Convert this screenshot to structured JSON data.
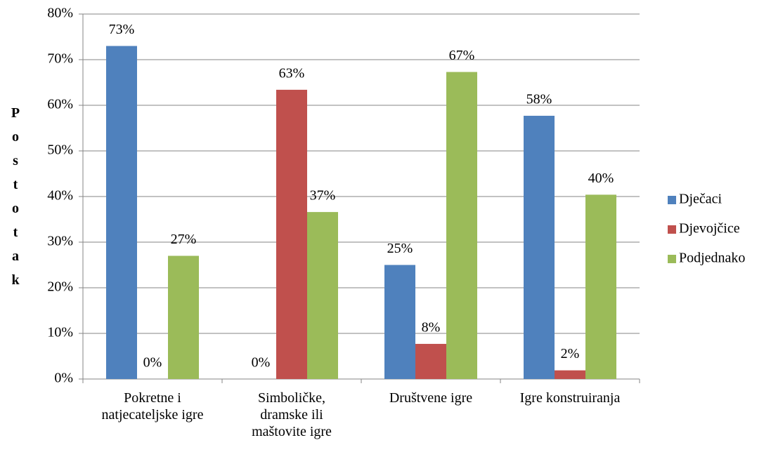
{
  "chart_data": {
    "type": "bar",
    "y_axis_label": "Postotak",
    "categories": [
      "Pokretne i natjecateljske igre",
      "Simboličke, dramske ili maštovite igre",
      "Društvene igre",
      "Igre konstruiranja"
    ],
    "series": [
      {
        "name": "Dječaci",
        "color": "#4f81bd",
        "values": [
          73,
          0,
          25,
          57.7
        ],
        "value_labels": [
          "73%",
          "0%",
          "25%",
          "58%"
        ]
      },
      {
        "name": "Djevojčice",
        "color": "#c0504d",
        "values": [
          0,
          63.4,
          7.7,
          1.9
        ],
        "value_labels": [
          "0%",
          "63%",
          "8%",
          "2%"
        ]
      },
      {
        "name": "Podjednako",
        "color": "#9bbb59",
        "values": [
          27,
          36.6,
          67.3,
          40.4
        ],
        "value_labels": [
          "27%",
          "37%",
          "67%",
          "40%"
        ]
      }
    ],
    "ylim": [
      0,
      80
    ],
    "yticks": [
      {
        "value": 0,
        "label": "0%"
      },
      {
        "value": 10,
        "label": "10%"
      },
      {
        "value": 20,
        "label": "20%"
      },
      {
        "value": 30,
        "label": "30%"
      },
      {
        "value": 40,
        "label": "40%"
      },
      {
        "value": 50,
        "label": "50%"
      },
      {
        "value": 60,
        "label": "60%"
      },
      {
        "value": 70,
        "label": "70%"
      },
      {
        "value": 80,
        "label": "80%"
      }
    ],
    "grid": true,
    "legend": "right"
  }
}
